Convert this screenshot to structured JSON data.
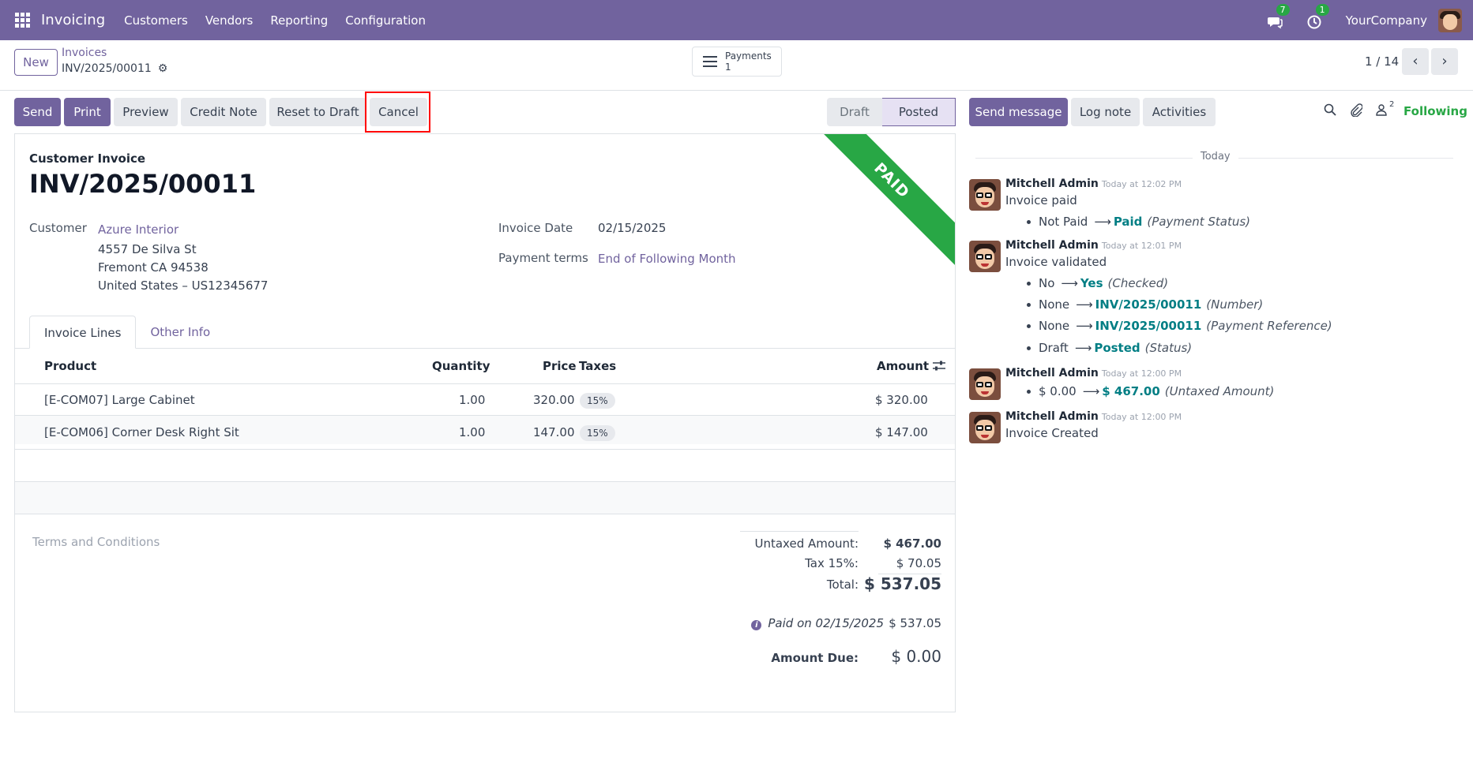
{
  "navbar": {
    "app_name": "Invoicing",
    "menu": [
      "Customers",
      "Vendors",
      "Reporting",
      "Configuration"
    ],
    "messages_count": "7",
    "activities_count": "1",
    "company": "YourCompany",
    "bg_color": "#71639e"
  },
  "control": {
    "new_label": "New",
    "breadcrumb_parent": "Invoices",
    "breadcrumb_current": "INV/2025/00011",
    "payments_label": "Payments",
    "payments_count": "1",
    "pager": "1 / 14"
  },
  "actions": {
    "send": "Send",
    "print": "Print",
    "preview": "Preview",
    "credit_note": "Credit Note",
    "reset_to_draft": "Reset to Draft",
    "cancel": "Cancel"
  },
  "status": {
    "draft": "Draft",
    "posted": "Posted"
  },
  "invoice": {
    "ribbon": "PAID",
    "doc_type": "Customer Invoice",
    "name": "INV/2025/00011",
    "customer_label": "Customer",
    "customer_name": "Azure Interior",
    "address_1": "4557 De Silva St",
    "address_2": "Fremont CA 94538",
    "address_3": "United States – US12345677",
    "invoice_date_label": "Invoice Date",
    "invoice_date": "02/15/2025",
    "payment_terms_label": "Payment terms",
    "payment_terms": "End of Following Month"
  },
  "tabs": {
    "invoice_lines": "Invoice Lines",
    "other_info": "Other Info"
  },
  "lines": {
    "headers": {
      "product": "Product",
      "quantity": "Quantity",
      "price": "Price",
      "taxes": "Taxes",
      "amount": "Amount"
    },
    "rows": [
      {
        "product": "[E-COM07] Large Cabinet",
        "quantity": "1.00",
        "price": "320.00",
        "tax": "15%",
        "amount": "$ 320.00"
      },
      {
        "product": "[E-COM06] Corner Desk Right Sit",
        "quantity": "1.00",
        "price": "147.00",
        "tax": "15%",
        "amount": "$ 147.00"
      }
    ]
  },
  "totals": {
    "terms_placeholder": "Terms and Conditions",
    "untaxed_label": "Untaxed Amount:",
    "untaxed_value": "$ 467.00",
    "tax_label": "Tax 15%:",
    "tax_value": "$ 70.05",
    "total_label": "Total:",
    "total_value": "$ 537.05",
    "paid_label": "Paid on 02/15/2025",
    "paid_value": "$ 537.05",
    "due_label": "Amount Due:",
    "due_value": "$ 0.00"
  },
  "chatter": {
    "send_message": "Send message",
    "log_note": "Log note",
    "activities": "Activities",
    "followers_count": "2",
    "following": "Following",
    "today": "Today",
    "messages": [
      {
        "author": "Mitchell Admin",
        "date": "Today at 12:02 PM",
        "body": "Invoice paid",
        "tracking": [
          {
            "old": "Not Paid",
            "new": "Paid",
            "field": "(Payment Status)"
          }
        ]
      },
      {
        "author": "Mitchell Admin",
        "date": "Today at 12:01 PM",
        "body": "Invoice validated",
        "tracking": [
          {
            "old": "No",
            "new": "Yes",
            "field": "(Checked)"
          },
          {
            "old": "None",
            "new": "INV/2025/00011",
            "field": "(Number)"
          },
          {
            "old": "None",
            "new": "INV/2025/00011",
            "field": "(Payment Reference)"
          },
          {
            "old": "Draft",
            "new": "Posted",
            "field": "(Status)"
          }
        ]
      },
      {
        "author": "Mitchell Admin",
        "date": "Today at 12:00 PM",
        "body": "",
        "tracking": [
          {
            "old": "$ 0.00",
            "new": "$ 467.00",
            "field": "(Untaxed Amount)"
          }
        ]
      },
      {
        "author": "Mitchell Admin",
        "date": "Today at 12:00 PM",
        "body": "Invoice Created",
        "tracking": []
      }
    ]
  }
}
